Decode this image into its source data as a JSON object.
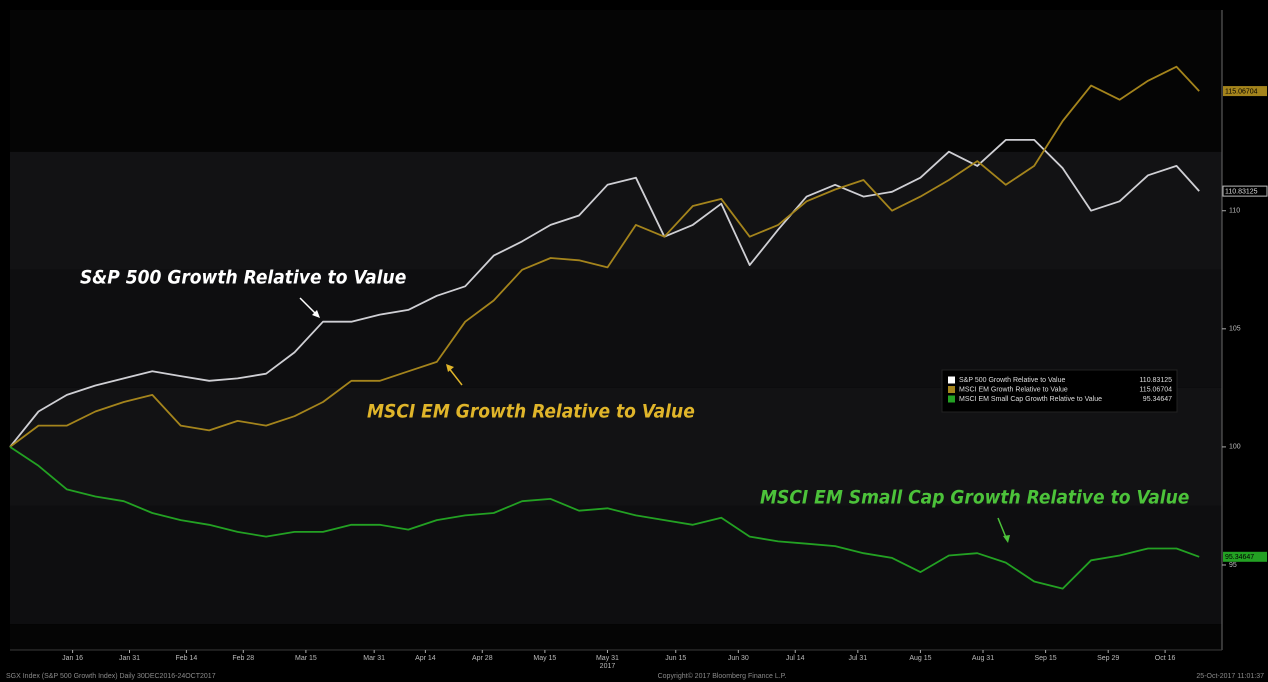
{
  "chart_data": {
    "type": "line",
    "x": [
      0,
      5,
      10,
      15,
      20,
      25,
      30,
      35,
      40,
      45,
      50,
      55,
      60,
      65,
      70,
      75,
      80,
      85,
      90,
      95,
      100,
      105,
      110,
      115,
      120,
      125,
      130,
      135,
      140,
      145,
      150,
      155,
      160,
      165,
      170,
      175,
      180,
      185,
      190,
      195,
      200,
      205,
      209
    ],
    "xlim": [
      0,
      213
    ],
    "xticks": [
      {
        "value": 11,
        "label": "Jan 16"
      },
      {
        "value": 21,
        "label": "Jan 31"
      },
      {
        "value": 31,
        "label": "Feb 14"
      },
      {
        "value": 41,
        "label": "Feb 28"
      },
      {
        "value": 52,
        "label": "Mar 15"
      },
      {
        "value": 64,
        "label": "Mar 31"
      },
      {
        "value": 73,
        "label": "Apr 14"
      },
      {
        "value": 83,
        "label": "Apr 28"
      },
      {
        "value": 94,
        "label": "May 15"
      },
      {
        "value": 105,
        "label": "May 31"
      },
      {
        "value": 117,
        "label": "Jun 15"
      },
      {
        "value": 128,
        "label": "Jun 30"
      },
      {
        "value": 138,
        "label": "Jul 14"
      },
      {
        "value": 149,
        "label": "Jul 31"
      },
      {
        "value": 160,
        "label": "Aug 15"
      },
      {
        "value": 171,
        "label": "Aug 31"
      },
      {
        "value": 182,
        "label": "Sep 15"
      },
      {
        "value": 193,
        "label": "Sep 29"
      },
      {
        "value": 203,
        "label": "Oct 16"
      }
    ],
    "year_label": "2017",
    "ylim": [
      91.4,
      118.5
    ],
    "yticks": [
      95,
      100,
      105,
      110
    ],
    "series": [
      {
        "name": "S&P 500 Growth Relative to Value",
        "color": "#cfcfd4",
        "values": [
          100,
          101.5,
          102.2,
          102.6,
          102.9,
          103.2,
          103.0,
          102.8,
          102.9,
          103.1,
          104.0,
          105.3,
          105.3,
          105.6,
          105.8,
          106.4,
          106.8,
          108.1,
          108.7,
          109.4,
          109.8,
          111.1,
          111.4,
          108.9,
          109.4,
          110.3,
          107.7,
          109.2,
          110.6,
          111.1,
          110.6,
          110.8,
          111.4,
          112.5,
          111.9,
          113.0,
          113.0,
          111.8,
          110.0,
          110.4,
          111.5,
          111.9,
          110.83125
        ]
      },
      {
        "name": "MSCI EM Growth Relative to Value",
        "color": "#a4841c",
        "values": [
          100,
          100.9,
          100.9,
          101.5,
          101.9,
          102.2,
          100.9,
          100.7,
          101.1,
          100.9,
          101.3,
          101.9,
          102.8,
          102.8,
          103.2,
          103.6,
          105.3,
          106.2,
          107.5,
          108.0,
          107.9,
          107.6,
          109.4,
          108.9,
          110.2,
          110.5,
          108.9,
          109.4,
          110.4,
          110.9,
          111.3,
          110.0,
          110.6,
          111.3,
          112.1,
          111.1,
          111.9,
          113.8,
          115.3,
          114.7,
          115.5,
          116.1,
          115.06704
        ]
      },
      {
        "name": "MSCI EM Small Cap Growth Relative to Value",
        "color": "#23a123",
        "values": [
          100,
          99.2,
          98.2,
          97.9,
          97.7,
          97.2,
          96.9,
          96.7,
          96.4,
          96.2,
          96.4,
          96.4,
          96.7,
          96.7,
          96.5,
          96.9,
          97.1,
          97.2,
          97.7,
          97.8,
          97.3,
          97.4,
          97.1,
          96.9,
          96.7,
          97.0,
          96.2,
          96.0,
          95.9,
          95.8,
          95.5,
          95.3,
          94.7,
          95.4,
          95.5,
          95.1,
          94.3,
          94.0,
          95.2,
          95.4,
          95.7,
          95.7,
          95.34647
        ]
      }
    ],
    "annotations": [
      {
        "text": "S&P 500 Growth Relative to Value",
        "color": "#ffffff"
      },
      {
        "text": "MSCI EM Growth Relative to Value",
        "color": "#e0b52a"
      },
      {
        "text": "MSCI EM Small Cap Growth Relative to Value",
        "color": "#4cc23a"
      }
    ],
    "legend": "right",
    "footer": {
      "left": "SGX Index (S&P 500 Growth Index) Daily 30DEC2016-24OCT2017",
      "center": "Copyright© 2017 Bloomberg Finance L.P.",
      "right": "25-Oct-2017 11:01:37"
    }
  }
}
